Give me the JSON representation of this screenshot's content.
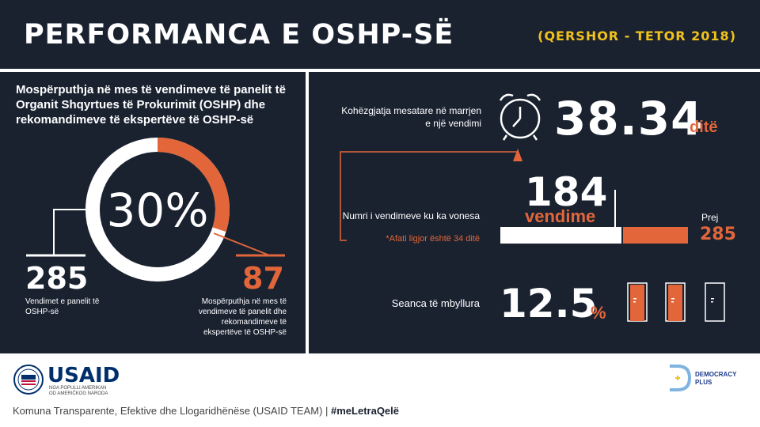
{
  "header": {
    "title": "PERFORMANCA E OSHP-SË",
    "period": "(QERSHOR - TETOR 2018)"
  },
  "left": {
    "heading": "Mospërputhja në mes të vendimeve të panelit të Organit Shqyrtues të Prokurimit (OSHP) dhe rekomandimeve të ekspertëve të OSHP-së",
    "percentage": "30%",
    "percentage_value": 30,
    "total_value": "285",
    "total_label": "Vendimet e panelit të OSHP-së",
    "mismatch_value": "87",
    "mismatch_label": "Mospërputhja në mes të vendimeve të panelit dhe rekomandimeve të ekspertëve të OSHP-së"
  },
  "right": {
    "avg_label": "Kohëzgjatja mesatare në marrjen e një vendimi",
    "avg_value": "38.34",
    "avg_unit": "ditë",
    "delay_label": "Numri i vendimeve ku ka vonesa",
    "delay_value": "184",
    "delay_unit": "vendime",
    "delay_note": "*Afati ligjor është 34 ditë",
    "delay_fraction": 0.6456,
    "of_label": "Prej",
    "of_value": "285",
    "closed_label": "Seanca të mbyllura",
    "closed_value": "12.5",
    "closed_unit": "%"
  },
  "footer": {
    "usaid_logo": "USAID",
    "usaid_sub": "NGA POPULLI AMERIKAN\nOD AMERIČKOG NARODA",
    "dp_logo": "DEMOCRACY\nPLUS",
    "text": "Komuna Transparente, Efektive dhe Llogaridhënëse (USAID TEAM) | ",
    "hashtag": "#meLetraQelë"
  },
  "colors": {
    "background": "#1a2230",
    "accent": "#e2663a",
    "period": "#f2c21c"
  }
}
